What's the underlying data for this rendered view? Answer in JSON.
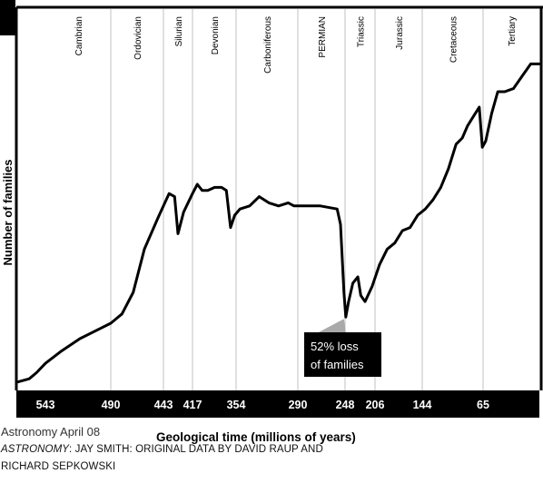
{
  "chart_data": {
    "type": "line",
    "xlabel": "Geological time (millions of years)",
    "ylabel": "Number of families",
    "x_unit": "millions of years ago",
    "xlim": [
      580,
      0
    ],
    "x_ticks": [
      543,
      490,
      443,
      417,
      354,
      290,
      248,
      206,
      144,
      65
    ],
    "periods": [
      {
        "name": "Cambrian",
        "start": 543,
        "end": 490
      },
      {
        "name": "Ordovician",
        "start": 490,
        "end": 443
      },
      {
        "name": "Silurian",
        "start": 443,
        "end": 417
      },
      {
        "name": "Devonian",
        "start": 417,
        "end": 354
      },
      {
        "name": "Carboniferous",
        "start": 354,
        "end": 290
      },
      {
        "name": "PERMIAN",
        "start": 290,
        "end": 248
      },
      {
        "name": "Triassic",
        "start": 248,
        "end": 206
      },
      {
        "name": "Jurassic",
        "start": 206,
        "end": 144
      },
      {
        "name": "Cretaceous",
        "start": 144,
        "end": 65
      },
      {
        "name": "Tertiary",
        "start": 65,
        "end": 0
      }
    ],
    "y_axis_note": "no numeric tick labels shown; y values are relative heights (0 = baseline, 100 = top of plot)",
    "ylim": [
      0,
      100
    ],
    "series": [
      {
        "points": [
          [
            580,
            1
          ],
          [
            565,
            2
          ],
          [
            555,
            4
          ],
          [
            543,
            7
          ],
          [
            530,
            11
          ],
          [
            515,
            15
          ],
          [
            500,
            18
          ],
          [
            490,
            20
          ],
          [
            480,
            23
          ],
          [
            470,
            30
          ],
          [
            460,
            44
          ],
          [
            448,
            54
          ],
          [
            443,
            58
          ],
          [
            438,
            62
          ],
          [
            433,
            61
          ],
          [
            430,
            49
          ],
          [
            425,
            56
          ],
          [
            417,
            62
          ],
          [
            410,
            65
          ],
          [
            403,
            63
          ],
          [
            395,
            63
          ],
          [
            385,
            64
          ],
          [
            375,
            64
          ],
          [
            368,
            63
          ],
          [
            362,
            51
          ],
          [
            356,
            55
          ],
          [
            350,
            57
          ],
          [
            340,
            58
          ],
          [
            330,
            61
          ],
          [
            320,
            59
          ],
          [
            310,
            58
          ],
          [
            300,
            59
          ],
          [
            294,
            58
          ],
          [
            285,
            58
          ],
          [
            270,
            58
          ],
          [
            255,
            57
          ],
          [
            252,
            52
          ],
          [
            249,
            30
          ],
          [
            247,
            22
          ],
          [
            243,
            27
          ],
          [
            237,
            33
          ],
          [
            230,
            35
          ],
          [
            226,
            29
          ],
          [
            220,
            27
          ],
          [
            210,
            32
          ],
          [
            200,
            39
          ],
          [
            190,
            44
          ],
          [
            180,
            46
          ],
          [
            170,
            50
          ],
          [
            160,
            51
          ],
          [
            150,
            55
          ],
          [
            140,
            57
          ],
          [
            130,
            60
          ],
          [
            120,
            64
          ],
          [
            110,
            70
          ],
          [
            100,
            78
          ],
          [
            92,
            80
          ],
          [
            85,
            84
          ],
          [
            75,
            88
          ],
          [
            70,
            90
          ],
          [
            66,
            77
          ],
          [
            62,
            79
          ],
          [
            55,
            88
          ],
          [
            48,
            95
          ],
          [
            40,
            95
          ],
          [
            30,
            96
          ],
          [
            20,
            100
          ],
          [
            10,
            104
          ],
          [
            0,
            104
          ]
        ]
      }
    ],
    "annotation": {
      "text_line1": "52% loss",
      "text_line2": "of families",
      "x": 249,
      "y": 22
    }
  },
  "source_note": "Astronomy April 08",
  "credit": {
    "publication": "ASTRONOMY",
    "line1_rest": ": JAY SMITH: ORIGINAL DATA BY DAVID RAUP AND",
    "line2": "RICHARD SEPKOWSKI"
  },
  "colors": {
    "line": "#000000",
    "divider": "#c0c0c0",
    "axis_band": "#000000",
    "axis_text": "#ffffff",
    "annotation_box": "#000000",
    "annotation_text": "#ffffff",
    "pointer": "#a9a9a9"
  }
}
